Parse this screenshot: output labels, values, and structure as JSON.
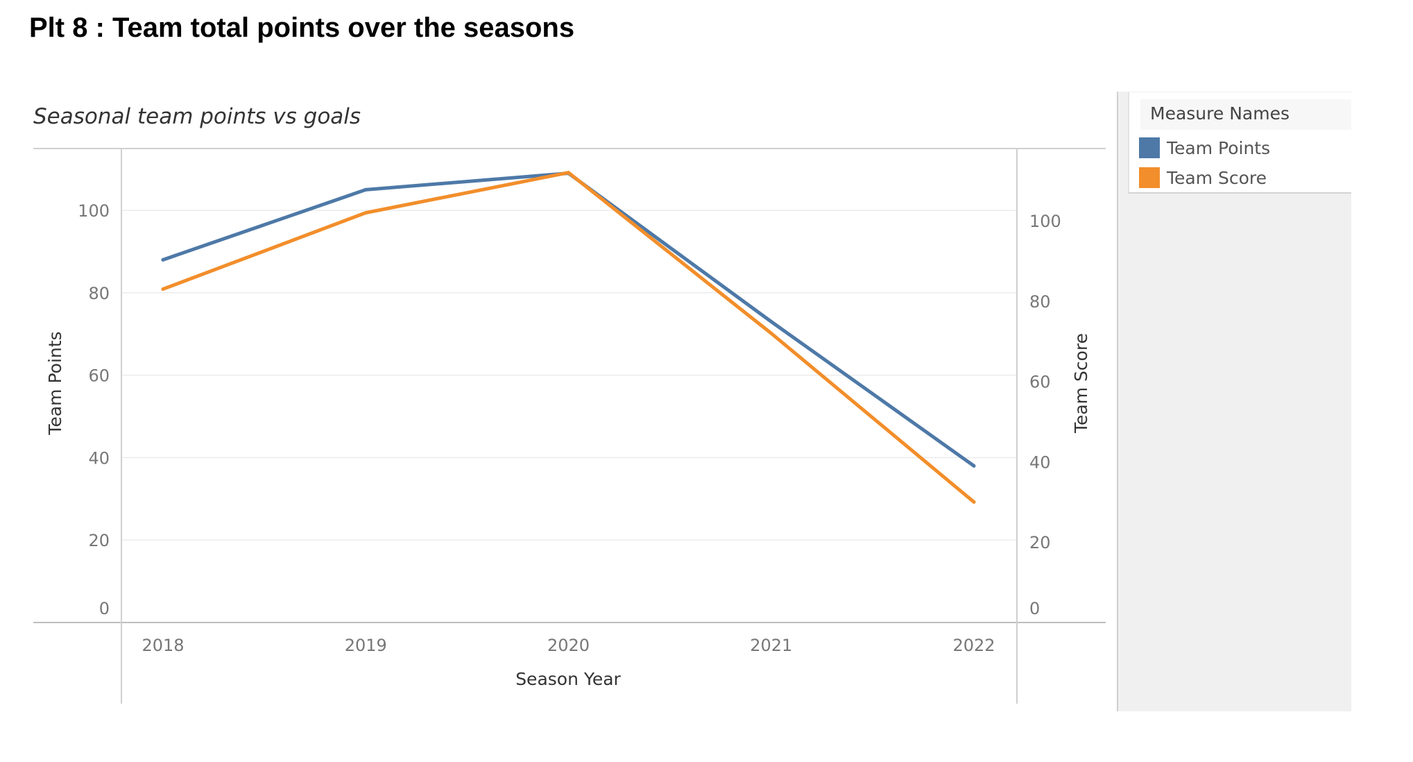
{
  "page_title": "Plt 8 : Team total points over the seasons",
  "chart_data": {
    "type": "line",
    "title": "Seasonal team points vs goals",
    "xlabel": "Season Year",
    "ylabel": "Team Points",
    "ylabel_right": "Team Score",
    "categories": [
      "2018",
      "2019",
      "2020",
      "2021",
      "2022"
    ],
    "ylim": [
      0,
      115
    ],
    "ylim_right": [
      0,
      118
    ],
    "yticks": [
      0,
      20,
      40,
      60,
      80,
      100
    ],
    "yticks_right": [
      0,
      20,
      40,
      60,
      80,
      100
    ],
    "grid": true,
    "legend_position": "right",
    "series": [
      {
        "name": "Team Points",
        "axis": "left",
        "color": "#4e79a7",
        "values": [
          88,
          105,
          109,
          73,
          38
        ]
      },
      {
        "name": "Team Score",
        "axis": "right",
        "color": "#f28e2b",
        "values": [
          83,
          102,
          112,
          72,
          30
        ]
      }
    ]
  },
  "legend": {
    "title": "Measure Names",
    "items": [
      {
        "label": "Team Points",
        "color": "#4e79a7"
      },
      {
        "label": "Team Score",
        "color": "#f28e2b"
      }
    ]
  }
}
